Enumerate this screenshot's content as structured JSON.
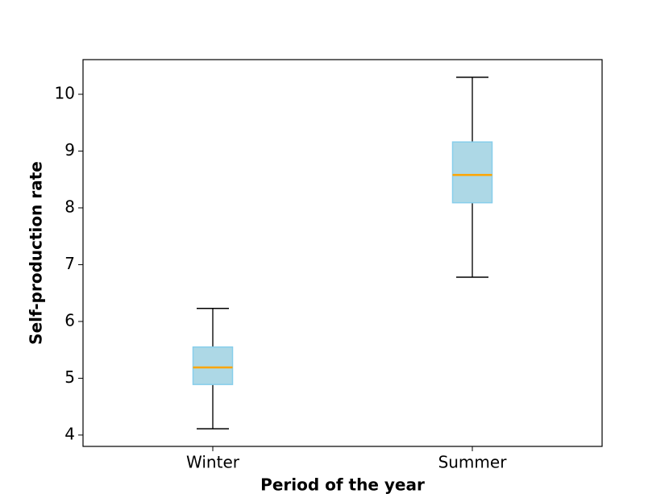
{
  "chart_data": {
    "type": "box",
    "xlabel": "Period of the year",
    "ylabel": "Self-production rate",
    "categories": [
      "Winter",
      "Summer"
    ],
    "boxes": [
      {
        "min": 4.11,
        "q1": 4.89,
        "median": 5.19,
        "q3": 5.55,
        "max": 6.23
      },
      {
        "min": 6.78,
        "q1": 8.09,
        "median": 8.58,
        "q3": 9.16,
        "max": 10.3
      }
    ],
    "box_color": "#add8e6",
    "box_edge_color": "#87ceeb",
    "median_color": "#ffa500",
    "whisker_color": "#555555",
    "ylim": [
      3.8,
      10.61
    ],
    "yticks": [
      4,
      5,
      6,
      7,
      8,
      9,
      10
    ],
    "grid": false
  }
}
